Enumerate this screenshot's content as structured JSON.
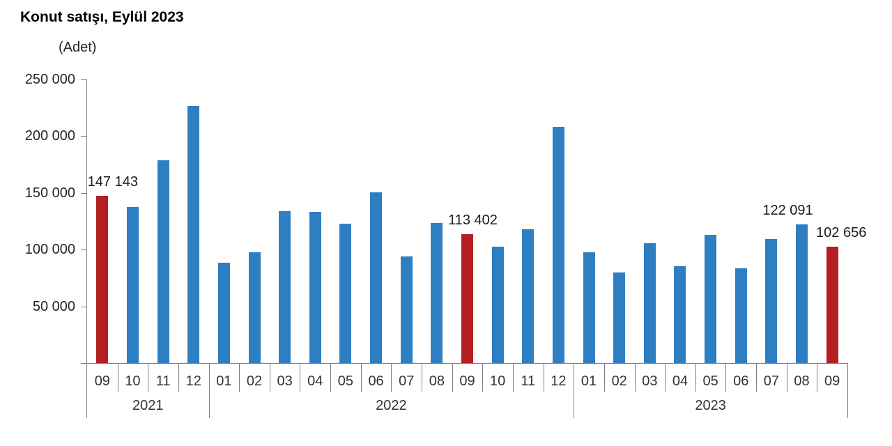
{
  "title": "Konut satışı, Eylül 2023",
  "unit_label": "(Adet)",
  "chart_data": {
    "type": "bar",
    "title": "Konut satışı, Eylül 2023",
    "ylabel": "Adet",
    "ylim": [
      0,
      250000
    ],
    "grid": false,
    "legend": null,
    "bar_color": "#2E7FC2",
    "highlight_color": "#B41F24",
    "axis_color": "#7F7F7F",
    "y_tick_values": [
      250000,
      200000,
      150000,
      100000,
      50000
    ],
    "y_tick_labels": [
      "250 000",
      "200 000",
      "150 000",
      "100 000",
      "50 000"
    ],
    "groups": [
      {
        "year": "2021",
        "months": [
          "09",
          "10",
          "11",
          "12"
        ]
      },
      {
        "year": "2022",
        "months": [
          "01",
          "02",
          "03",
          "04",
          "05",
          "06",
          "07",
          "08",
          "09",
          "10",
          "11",
          "12"
        ]
      },
      {
        "year": "2023",
        "months": [
          "01",
          "02",
          "03",
          "04",
          "05",
          "06",
          "07",
          "08",
          "09"
        ]
      }
    ],
    "values": [
      147143,
      137401,
      178814,
      226503,
      88306,
      97587,
      134170,
      133058,
      122768,
      150509,
      93902,
      123491,
      113402,
      102660,
      117806,
      207963,
      97708,
      80031,
      105476,
      85652,
      113110,
      83636,
      109548,
      122091,
      102656
    ],
    "highlight_indices": [
      0,
      12,
      24
    ],
    "data_labels": [
      {
        "index": 0,
        "text": "147 143",
        "dx": 15
      },
      {
        "index": 12,
        "text": "113 402",
        "dx": 8
      },
      {
        "index": 23,
        "text": "122 091",
        "dx": -20
      },
      {
        "index": 24,
        "text": "102 656",
        "dx": 13
      }
    ]
  }
}
